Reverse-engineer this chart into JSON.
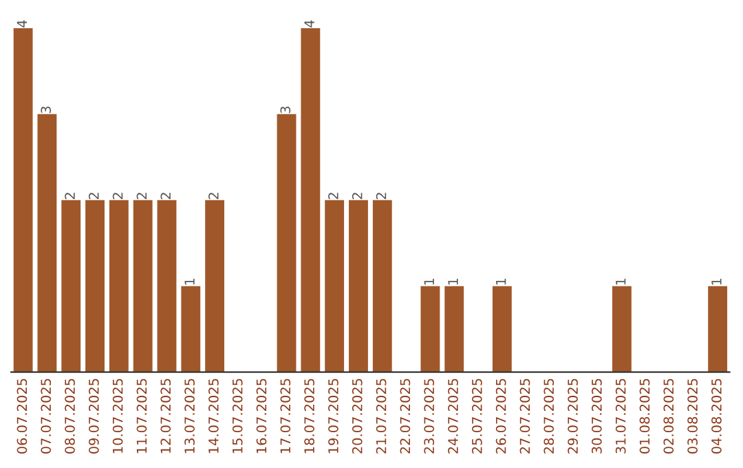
{
  "chart_data": {
    "type": "bar",
    "categories": [
      "06.07.2025",
      "07.07.2025",
      "08.07.2025",
      "09.07.2025",
      "10.07.2025",
      "11.07.2025",
      "12.07.2025",
      "13.07.2025",
      "14.07.2025",
      "15.07.2025",
      "16.07.2025",
      "17.07.2025",
      "18.07.2025",
      "19.07.2025",
      "20.07.2025",
      "21.07.2025",
      "22.07.2025",
      "23.07.2025",
      "24.07.2025",
      "25.07.2025",
      "26.07.2025",
      "27.07.2025",
      "28.07.2025",
      "29.07.2025",
      "30.07.2025",
      "31.07.2025",
      "01.08.2025",
      "02.08.2025",
      "03.08.2025",
      "04.08.2025"
    ],
    "values": [
      4,
      3,
      2,
      2,
      2,
      2,
      2,
      1,
      2,
      0,
      0,
      3,
      4,
      2,
      2,
      2,
      0,
      1,
      1,
      0,
      1,
      0,
      0,
      0,
      0,
      1,
      0,
      0,
      0,
      1
    ],
    "value_labels": [
      "4",
      "3",
      "2",
      "2",
      "2",
      "2",
      "2",
      "1",
      "2",
      null,
      null,
      "3",
      "4",
      "2",
      "2",
      "2",
      null,
      "1",
      "1",
      null,
      "1",
      null,
      null,
      null,
      null,
      "1",
      null,
      null,
      null,
      "1"
    ],
    "color": "#a0582a",
    "tick_labels": "x",
    "grid": false,
    "legend": false
  }
}
